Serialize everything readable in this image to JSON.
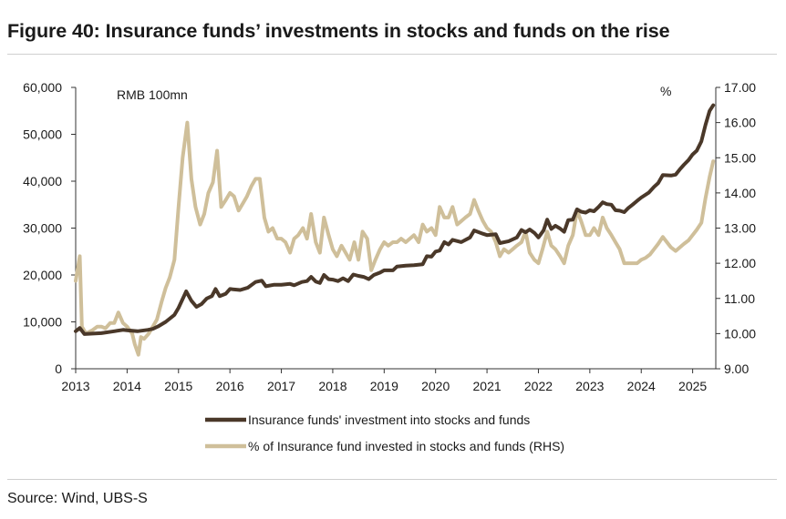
{
  "header": {
    "title": "Figure 40: Insurance funds’ investments in stocks and funds on the rise"
  },
  "footer": {
    "source": "Source: Wind, UBS-S"
  },
  "chart_data": {
    "type": "line",
    "title": "Figure 40: Insurance funds’ investments in stocks and funds on the rise",
    "left_axis": {
      "label": "RMB 100mn",
      "min": 0,
      "max": 60000,
      "ticks": [
        "0",
        "10,000",
        "20,000",
        "30,000",
        "40,000",
        "50,000",
        "60,000"
      ],
      "tick_values": [
        0,
        10000,
        20000,
        30000,
        40000,
        50000,
        60000
      ]
    },
    "right_axis": {
      "label": "%",
      "min": 9,
      "max": 17,
      "ticks": [
        "9.00",
        "10.00",
        "11.00",
        "12.00",
        "13.00",
        "14.00",
        "15.00",
        "16.00",
        "17.00"
      ],
      "tick_values": [
        9,
        10,
        11,
        12,
        13,
        14,
        15,
        16,
        17
      ]
    },
    "x_axis": {
      "min": 2013,
      "max": 2025.45,
      "ticks": [
        "2013",
        "2014",
        "2015",
        "2016",
        "2017",
        "2018",
        "2019",
        "2020",
        "2021",
        "2022",
        "2023",
        "2024",
        "2025"
      ],
      "tick_values": [
        2013,
        2014,
        2015,
        2016,
        2017,
        2018,
        2019,
        2020,
        2021,
        2022,
        2023,
        2024,
        2025
      ]
    },
    "grid": false,
    "legend_position": "bottom",
    "series": [
      {
        "name": "Insurance funds' investment into stocks and funds",
        "axis": "left",
        "color": "#4a3829",
        "points": [
          [
            2013.0,
            8000
          ],
          [
            2013.08,
            8700
          ],
          [
            2013.17,
            7400
          ],
          [
            2013.33,
            7500
          ],
          [
            2013.5,
            7600
          ],
          [
            2013.75,
            8000
          ],
          [
            2013.92,
            8300
          ],
          [
            2014.0,
            8200
          ],
          [
            2014.2,
            8000
          ],
          [
            2014.4,
            8300
          ],
          [
            2014.5,
            8500
          ],
          [
            2014.6,
            9000
          ],
          [
            2014.75,
            10000
          ],
          [
            2014.92,
            11500
          ],
          [
            2015.0,
            13000
          ],
          [
            2015.15,
            16500
          ],
          [
            2015.25,
            14500
          ],
          [
            2015.35,
            13200
          ],
          [
            2015.45,
            13800
          ],
          [
            2015.55,
            15000
          ],
          [
            2015.65,
            15500
          ],
          [
            2015.72,
            17000
          ],
          [
            2015.8,
            15500
          ],
          [
            2015.92,
            16000
          ],
          [
            2016.0,
            17000
          ],
          [
            2016.2,
            16800
          ],
          [
            2016.35,
            17300
          ],
          [
            2016.5,
            18500
          ],
          [
            2016.62,
            18800
          ],
          [
            2016.7,
            17600
          ],
          [
            2016.85,
            17900
          ],
          [
            2017.0,
            17900
          ],
          [
            2017.17,
            18100
          ],
          [
            2017.25,
            17800
          ],
          [
            2017.4,
            18500
          ],
          [
            2017.5,
            18700
          ],
          [
            2017.58,
            19600
          ],
          [
            2017.67,
            18600
          ],
          [
            2017.75,
            18300
          ],
          [
            2017.83,
            20000
          ],
          [
            2017.92,
            19100
          ],
          [
            2018.0,
            19000
          ],
          [
            2018.1,
            18700
          ],
          [
            2018.2,
            19300
          ],
          [
            2018.3,
            18700
          ],
          [
            2018.4,
            20100
          ],
          [
            2018.5,
            19800
          ],
          [
            2018.6,
            19600
          ],
          [
            2018.7,
            19100
          ],
          [
            2018.8,
            20000
          ],
          [
            2018.92,
            20500
          ],
          [
            2019.0,
            21000
          ],
          [
            2019.17,
            21000
          ],
          [
            2019.25,
            21800
          ],
          [
            2019.42,
            22000
          ],
          [
            2019.58,
            22100
          ],
          [
            2019.75,
            22300
          ],
          [
            2019.83,
            24000
          ],
          [
            2019.92,
            23900
          ],
          [
            2020.0,
            25000
          ],
          [
            2020.08,
            25200
          ],
          [
            2020.17,
            27000
          ],
          [
            2020.25,
            26500
          ],
          [
            2020.33,
            27500
          ],
          [
            2020.5,
            27000
          ],
          [
            2020.67,
            28000
          ],
          [
            2020.75,
            29500
          ],
          [
            2020.92,
            28800
          ],
          [
            2021.0,
            28500
          ],
          [
            2021.17,
            28700
          ],
          [
            2021.25,
            26800
          ],
          [
            2021.42,
            27200
          ],
          [
            2021.58,
            28000
          ],
          [
            2021.67,
            29600
          ],
          [
            2021.75,
            29100
          ],
          [
            2021.83,
            29700
          ],
          [
            2021.92,
            29000
          ],
          [
            2022.0,
            28000
          ],
          [
            2022.1,
            29500
          ],
          [
            2022.17,
            31800
          ],
          [
            2022.25,
            29800
          ],
          [
            2022.33,
            30500
          ],
          [
            2022.42,
            29900
          ],
          [
            2022.5,
            29200
          ],
          [
            2022.58,
            31700
          ],
          [
            2022.67,
            31800
          ],
          [
            2022.75,
            34000
          ],
          [
            2022.83,
            33500
          ],
          [
            2022.92,
            33300
          ],
          [
            2023.0,
            33800
          ],
          [
            2023.08,
            33600
          ],
          [
            2023.17,
            34500
          ],
          [
            2023.25,
            35500
          ],
          [
            2023.33,
            35100
          ],
          [
            2023.42,
            35000
          ],
          [
            2023.5,
            33800
          ],
          [
            2023.58,
            33700
          ],
          [
            2023.67,
            33400
          ],
          [
            2023.75,
            34300
          ],
          [
            2023.83,
            35000
          ],
          [
            2023.92,
            35800
          ],
          [
            2024.0,
            36500
          ],
          [
            2024.15,
            37600
          ],
          [
            2024.25,
            38800
          ],
          [
            2024.33,
            39600
          ],
          [
            2024.42,
            41300
          ],
          [
            2024.58,
            41200
          ],
          [
            2024.67,
            41400
          ],
          [
            2024.75,
            42500
          ],
          [
            2024.83,
            43500
          ],
          [
            2024.92,
            44500
          ],
          [
            2025.0,
            45700
          ],
          [
            2025.08,
            46500
          ],
          [
            2025.17,
            48500
          ],
          [
            2025.25,
            52000
          ],
          [
            2025.33,
            55000
          ],
          [
            2025.4,
            56200
          ]
        ]
      },
      {
        "name": "% of Insurance fund invested in stocks and funds (RHS)",
        "axis": "right",
        "color": "#cfbf9a",
        "points": [
          [
            2013.0,
            11.5
          ],
          [
            2013.08,
            12.2
          ],
          [
            2013.12,
            10.2
          ],
          [
            2013.2,
            10.0
          ],
          [
            2013.33,
            10.1
          ],
          [
            2013.42,
            10.2
          ],
          [
            2013.5,
            10.2
          ],
          [
            2013.58,
            10.15
          ],
          [
            2013.67,
            10.3
          ],
          [
            2013.75,
            10.3
          ],
          [
            2013.83,
            10.6
          ],
          [
            2013.92,
            10.3
          ],
          [
            2014.0,
            10.2
          ],
          [
            2014.1,
            10.0
          ],
          [
            2014.15,
            9.7
          ],
          [
            2014.22,
            9.4
          ],
          [
            2014.27,
            9.9
          ],
          [
            2014.33,
            9.85
          ],
          [
            2014.42,
            10.0
          ],
          [
            2014.5,
            10.2
          ],
          [
            2014.58,
            10.4
          ],
          [
            2014.67,
            10.9
          ],
          [
            2014.75,
            11.3
          ],
          [
            2014.83,
            11.6
          ],
          [
            2014.92,
            12.1
          ],
          [
            2015.0,
            13.6
          ],
          [
            2015.08,
            15.0
          ],
          [
            2015.17,
            16.0
          ],
          [
            2015.25,
            14.4
          ],
          [
            2015.33,
            13.6
          ],
          [
            2015.42,
            13.1
          ],
          [
            2015.5,
            13.4
          ],
          [
            2015.58,
            14.0
          ],
          [
            2015.67,
            14.3
          ],
          [
            2015.75,
            15.2
          ],
          [
            2015.83,
            13.6
          ],
          [
            2015.92,
            13.8
          ],
          [
            2016.0,
            14.0
          ],
          [
            2016.08,
            13.9
          ],
          [
            2016.17,
            13.5
          ],
          [
            2016.25,
            13.7
          ],
          [
            2016.33,
            13.9
          ],
          [
            2016.42,
            14.2
          ],
          [
            2016.5,
            14.4
          ],
          [
            2016.58,
            14.4
          ],
          [
            2016.67,
            13.3
          ],
          [
            2016.75,
            12.9
          ],
          [
            2016.83,
            13.0
          ],
          [
            2016.92,
            12.7
          ],
          [
            2017.0,
            12.7
          ],
          [
            2017.08,
            12.6
          ],
          [
            2017.17,
            12.3
          ],
          [
            2017.25,
            12.7
          ],
          [
            2017.33,
            12.8
          ],
          [
            2017.42,
            13.0
          ],
          [
            2017.5,
            12.7
          ],
          [
            2017.58,
            13.4
          ],
          [
            2017.67,
            12.6
          ],
          [
            2017.75,
            12.3
          ],
          [
            2017.83,
            13.3
          ],
          [
            2017.92,
            12.8
          ],
          [
            2018.0,
            12.4
          ],
          [
            2018.08,
            12.2
          ],
          [
            2018.17,
            12.5
          ],
          [
            2018.25,
            12.3
          ],
          [
            2018.33,
            12.1
          ],
          [
            2018.42,
            12.6
          ],
          [
            2018.5,
            12.1
          ],
          [
            2018.58,
            12.9
          ],
          [
            2018.67,
            12.7
          ],
          [
            2018.75,
            11.8
          ],
          [
            2018.83,
            12.1
          ],
          [
            2018.92,
            12.4
          ],
          [
            2019.0,
            12.6
          ],
          [
            2019.08,
            12.5
          ],
          [
            2019.17,
            12.6
          ],
          [
            2019.25,
            12.6
          ],
          [
            2019.33,
            12.7
          ],
          [
            2019.42,
            12.6
          ],
          [
            2019.5,
            12.7
          ],
          [
            2019.58,
            12.8
          ],
          [
            2019.67,
            12.6
          ],
          [
            2019.75,
            13.1
          ],
          [
            2019.83,
            12.9
          ],
          [
            2019.92,
            13.0
          ],
          [
            2020.0,
            12.8
          ],
          [
            2020.08,
            13.6
          ],
          [
            2020.17,
            13.3
          ],
          [
            2020.25,
            13.3
          ],
          [
            2020.33,
            13.6
          ],
          [
            2020.42,
            13.1
          ],
          [
            2020.5,
            13.2
          ],
          [
            2020.58,
            13.3
          ],
          [
            2020.67,
            13.4
          ],
          [
            2020.75,
            13.8
          ],
          [
            2020.83,
            13.5
          ],
          [
            2020.92,
            13.2
          ],
          [
            2021.0,
            13.0
          ],
          [
            2021.08,
            12.9
          ],
          [
            2021.17,
            12.6
          ],
          [
            2021.25,
            12.2
          ],
          [
            2021.33,
            12.4
          ],
          [
            2021.42,
            12.3
          ],
          [
            2021.5,
            12.4
          ],
          [
            2021.58,
            12.5
          ],
          [
            2021.67,
            12.6
          ],
          [
            2021.75,
            12.9
          ],
          [
            2021.83,
            12.3
          ],
          [
            2021.92,
            12.1
          ],
          [
            2022.0,
            12.0
          ],
          [
            2022.08,
            12.4
          ],
          [
            2022.17,
            12.9
          ],
          [
            2022.25,
            12.5
          ],
          [
            2022.33,
            12.4
          ],
          [
            2022.42,
            12.2
          ],
          [
            2022.5,
            12.0
          ],
          [
            2022.58,
            12.5
          ],
          [
            2022.67,
            12.8
          ],
          [
            2022.75,
            13.5
          ],
          [
            2022.83,
            13.2
          ],
          [
            2022.92,
            12.8
          ],
          [
            2023.0,
            12.8
          ],
          [
            2023.08,
            13.0
          ],
          [
            2023.17,
            12.8
          ],
          [
            2023.25,
            13.3
          ],
          [
            2023.33,
            13.0
          ],
          [
            2023.42,
            12.8
          ],
          [
            2023.5,
            12.6
          ],
          [
            2023.58,
            12.4
          ],
          [
            2023.67,
            12.0
          ],
          [
            2023.75,
            12.0
          ],
          [
            2023.83,
            12.0
          ],
          [
            2023.92,
            12.0
          ],
          [
            2024.0,
            12.1
          ],
          [
            2024.08,
            12.15
          ],
          [
            2024.17,
            12.25
          ],
          [
            2024.25,
            12.4
          ],
          [
            2024.33,
            12.55
          ],
          [
            2024.42,
            12.75
          ],
          [
            2024.5,
            12.6
          ],
          [
            2024.58,
            12.45
          ],
          [
            2024.67,
            12.35
          ],
          [
            2024.75,
            12.45
          ],
          [
            2024.83,
            12.55
          ],
          [
            2024.92,
            12.65
          ],
          [
            2025.0,
            12.8
          ],
          [
            2025.08,
            12.95
          ],
          [
            2025.17,
            13.15
          ],
          [
            2025.25,
            13.85
          ],
          [
            2025.33,
            14.45
          ],
          [
            2025.4,
            14.9
          ]
        ]
      }
    ]
  }
}
